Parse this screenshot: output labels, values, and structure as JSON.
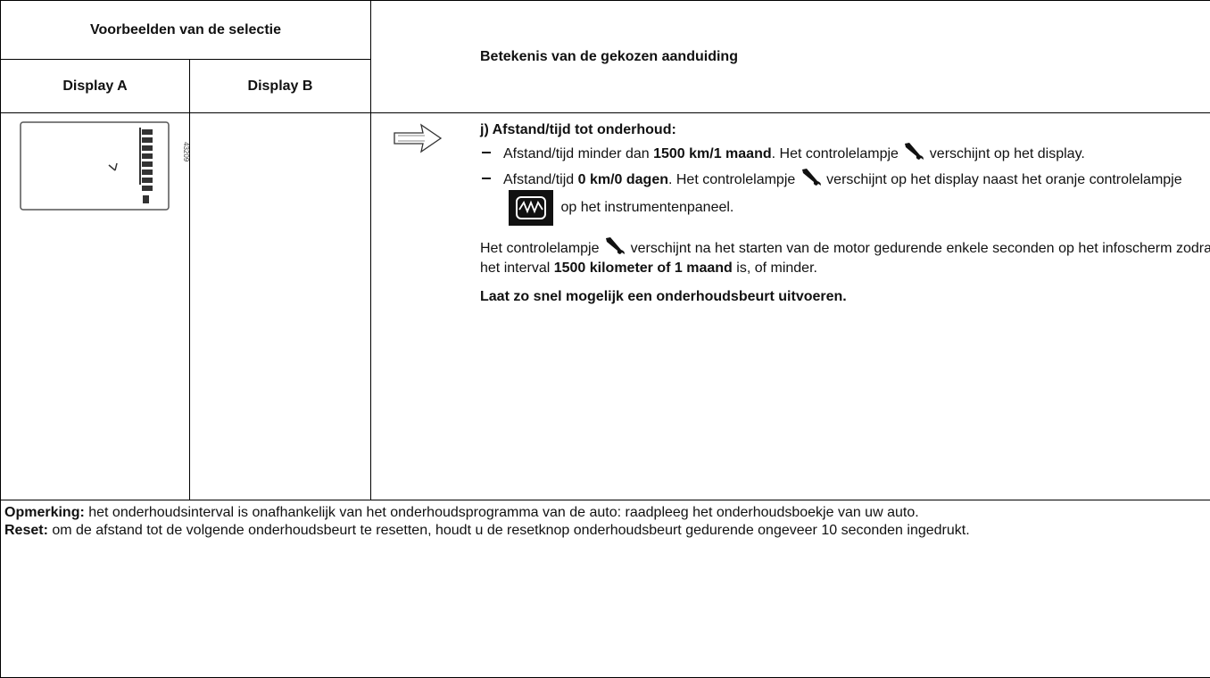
{
  "header": {
    "selection_title": "Voorbeelden van de selectie",
    "display_a": "Display A",
    "display_b": "Display B",
    "meaning_title": "Betekenis van de gekozen aanduiding"
  },
  "example": {
    "image_code": "43209"
  },
  "meaning": {
    "heading": "j) Afstand/tijd tot onderhoud:",
    "items": [
      [
        "Afstand/tijd minder dan ",
        "1500 km/1 maand",
        ". Het controlelampje ",
        " verschijnt op het display."
      ],
      [
        "Afstand/tijd ",
        "0 km/0 dagen",
        ". Het controlelampje ",
        " verschijnt op het display naast het oranje controlelampje ",
        " op het instrumentenpaneel."
      ]
    ],
    "paragraph": [
      "Het controlelampje ",
      " verschijnt na het starten van de motor gedurende enkele seconden op het infoscherm zodra het interval ",
      "1500 kilometer of 1 maand",
      " is, of minder."
    ],
    "advice": "Laat zo snel mogelijk een onderhoudsbeurt uitvoeren."
  },
  "notes": [
    [
      "Opmerking:",
      " het onderhoudsinterval is onafhankelijk van het onderhoudsprogramma van de auto: raadpleeg het onderhoudsboekje van uw auto."
    ],
    [
      "Reset:",
      " om de afstand tot de volgende onderhoudsbeurt te resetten, houdt u de resetknop onderhoudsbeurt gedurende ongeveer 10 seconden ingedrukt."
    ]
  ]
}
